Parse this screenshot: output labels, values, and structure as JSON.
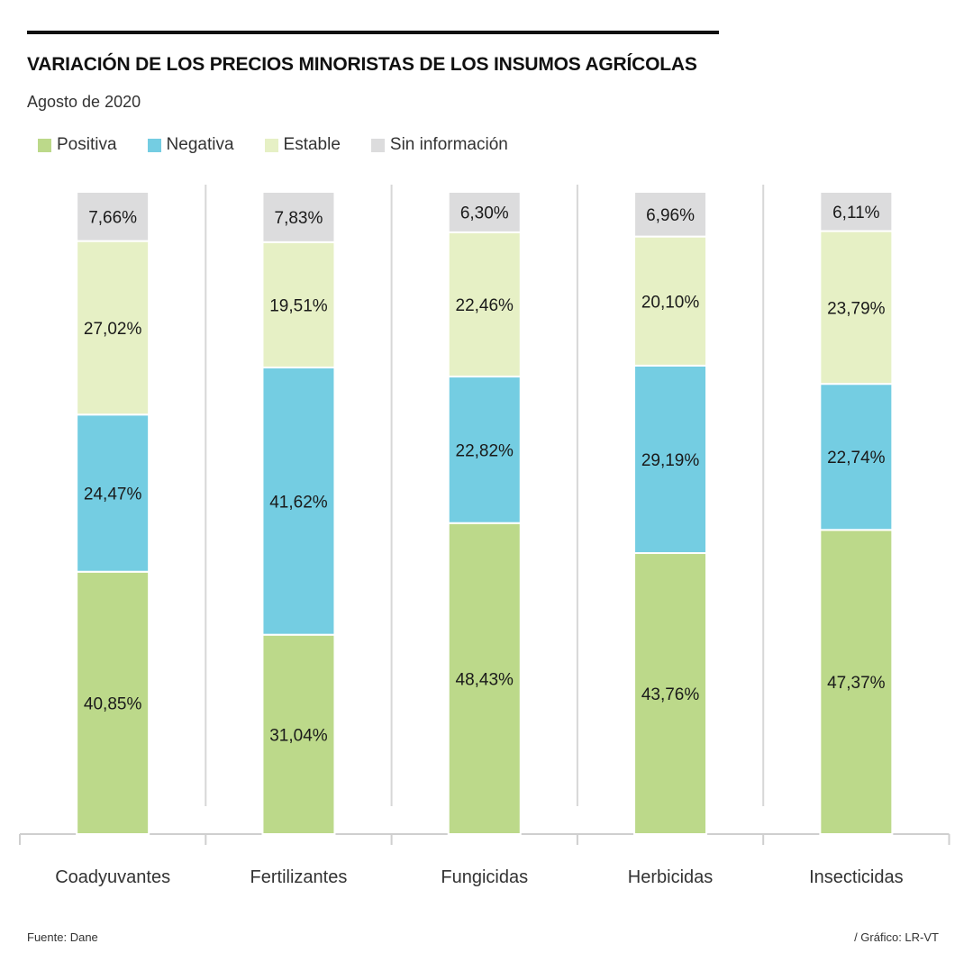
{
  "header": {
    "title": "VARIACIÓN DE LOS PRECIOS MINORISTAS DE LOS INSUMOS AGRÍCOLAS",
    "subtitle": "Agosto de 2020"
  },
  "legend": [
    {
      "label": "Positiva",
      "color": "#bcd98a"
    },
    {
      "label": "Negativa",
      "color": "#74cde2"
    },
    {
      "label": "Estable",
      "color": "#e6f0c5"
    },
    {
      "label": "Sin información",
      "color": "#dcdcdd"
    }
  ],
  "chart_data": {
    "type": "bar",
    "stacked": true,
    "categories": [
      "Coadyuvantes",
      "Fertilizantes",
      "Fungicidas",
      "Herbicidas",
      "Insecticidas"
    ],
    "series": [
      {
        "name": "Positiva",
        "color": "#bcd98a",
        "values": [
          40.85,
          31.04,
          48.43,
          43.76,
          47.37
        ],
        "labels": [
          "40,85%",
          "31,04%",
          "48,43%",
          "43,76%",
          "47,37%"
        ]
      },
      {
        "name": "Negativa",
        "color": "#74cde2",
        "values": [
          24.47,
          41.62,
          22.82,
          29.19,
          22.74
        ],
        "labels": [
          "24,47%",
          "41,62%",
          "22,82%",
          "29,19%",
          "22,74%"
        ]
      },
      {
        "name": "Estable",
        "color": "#e6f0c5",
        "values": [
          27.02,
          19.51,
          22.46,
          20.1,
          23.79
        ],
        "labels": [
          "27,02%",
          "19,51%",
          "22,46%",
          "20,10%",
          "23,79%"
        ]
      },
      {
        "name": "Sin información",
        "color": "#dcdcdd",
        "values": [
          7.66,
          7.83,
          6.3,
          6.96,
          6.11
        ],
        "labels": [
          "7,66%",
          "7,83%",
          "6,30%",
          "6,96%",
          "6,11%"
        ]
      }
    ],
    "ylim": [
      0,
      100
    ],
    "grid": false,
    "legend_position": "top-left"
  },
  "footer": {
    "source": "Fuente: Dane",
    "credit": "/ Gráfico: LR-VT"
  }
}
